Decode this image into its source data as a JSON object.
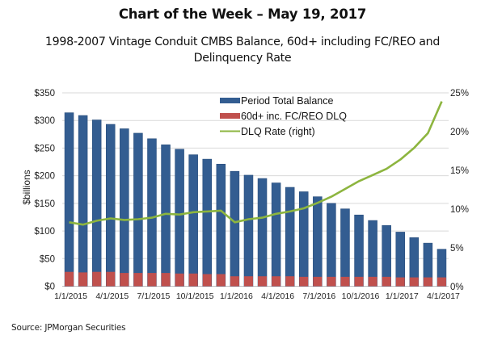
{
  "header": {
    "title": "Chart of the Week – May 19, 2017",
    "subtitle_line1": "1998-2007 Vintage Conduit CMBS Balance, 60d+ including FC/REO and",
    "subtitle_line2": "Delinquency Rate"
  },
  "footer": {
    "source": "Source: JPMorgan Securities"
  },
  "colors": {
    "balance": "#335d91",
    "dlq": "#c0504d",
    "rate": "#8db53f",
    "grid": "#d9d9d9"
  },
  "chart_data": {
    "type": "bar",
    "combo": "stacked-bar-plus-line-secondary-axis",
    "title": "1998-2007 Vintage Conduit CMBS Balance, 60d+ including FC/REO and Delinquency Rate",
    "xlabel": "",
    "ylabel": "$billions",
    "ylabel_right": "",
    "ylim": [
      0,
      350
    ],
    "ylim_right": [
      0,
      25
    ],
    "yticks": [
      "$0",
      "$50",
      "$100",
      "$150",
      "$200",
      "$250",
      "$300",
      "$350"
    ],
    "yticks_right": [
      "0%",
      "5%",
      "10%",
      "15%",
      "20%",
      "25%"
    ],
    "grid": true,
    "legend_position": "top-center",
    "x": [
      "1/1/2015",
      "2/1/2015",
      "3/1/2015",
      "4/1/2015",
      "5/1/2015",
      "6/1/2015",
      "7/1/2015",
      "8/1/2015",
      "9/1/2015",
      "10/1/2015",
      "11/1/2015",
      "12/1/2015",
      "1/1/2016",
      "2/1/2016",
      "3/1/2016",
      "4/1/2016",
      "5/1/2016",
      "6/1/2016",
      "7/1/2016",
      "8/1/2016",
      "9/1/2016",
      "10/1/2016",
      "11/1/2016",
      "12/1/2016",
      "1/1/2017",
      "2/1/2017",
      "3/1/2017",
      "4/1/2017"
    ],
    "xtick_labels": [
      "1/1/2015",
      "4/1/2015",
      "7/1/2015",
      "10/1/2015",
      "1/1/2016",
      "4/1/2016",
      "7/1/2016",
      "10/1/2016",
      "1/1/2017",
      "4/1/2017"
    ],
    "series": [
      {
        "name": "Period Total Balance",
        "kind": "bar",
        "axis": "left",
        "values": [
          314,
          309,
          301,
          293,
          285,
          277,
          267,
          256,
          248,
          238,
          230,
          221,
          208,
          201,
          195,
          187,
          179,
          171,
          162,
          150,
          140,
          129,
          119,
          110,
          98,
          88,
          78,
          67
        ]
      },
      {
        "name": "60d+ inc. FC/REO DLQ",
        "kind": "bar",
        "axis": "left",
        "values": [
          26,
          25,
          26,
          26,
          24,
          24,
          24,
          24,
          23,
          23,
          22,
          22,
          18,
          18,
          18,
          18,
          18,
          17,
          17,
          17,
          17,
          17,
          17,
          17,
          16,
          16,
          16,
          16
        ]
      },
      {
        "name": "DLQ Rate (right)",
        "kind": "line",
        "axis": "right",
        "unit": "%",
        "values": [
          8.3,
          8.0,
          8.5,
          8.8,
          8.6,
          8.7,
          8.9,
          9.4,
          9.3,
          9.6,
          9.7,
          9.8,
          8.3,
          8.7,
          8.9,
          9.4,
          9.7,
          10.1,
          10.8,
          11.6,
          12.6,
          13.6,
          14.4,
          15.2,
          16.4,
          17.9,
          19.8,
          23.9
        ]
      }
    ],
    "legend": [
      "Period Total Balance",
      "60d+ inc. FC/REO DLQ",
      "DLQ Rate (right)"
    ]
  }
}
